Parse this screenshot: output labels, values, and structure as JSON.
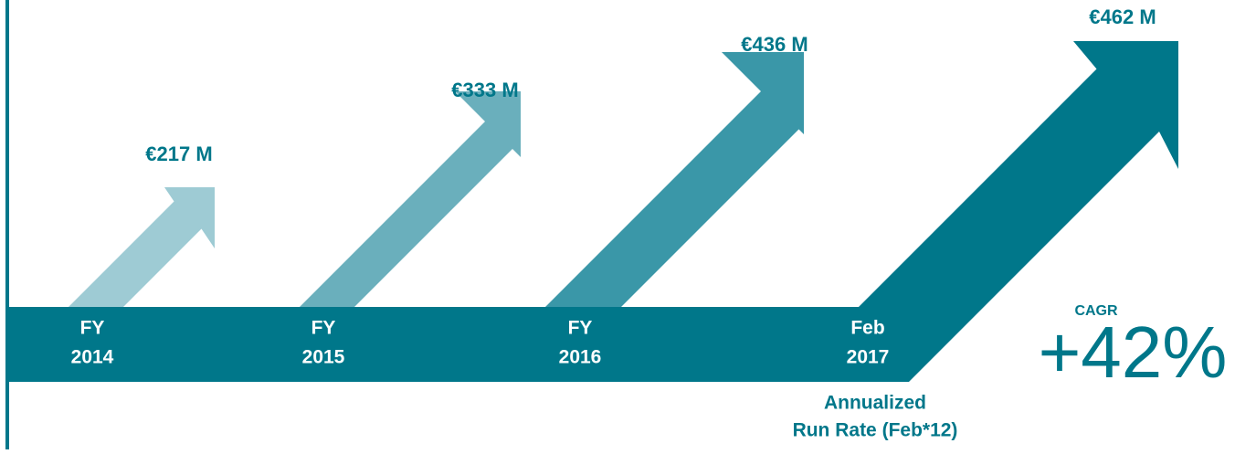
{
  "periods": [
    {
      "label": [
        "FY",
        "2014"
      ],
      "value": "€217 M"
    },
    {
      "label": [
        "FY",
        "2015"
      ],
      "value": "€333 M"
    },
    {
      "label": [
        "FY",
        "2016"
      ],
      "value": "€436 M"
    },
    {
      "label": [
        "Feb",
        "2017"
      ],
      "value": "€462 M"
    }
  ],
  "note": [
    "Annualized",
    "Run Rate (Feb*12)"
  ],
  "cagr": {
    "label": "CAGR",
    "value": "+42%"
  }
}
